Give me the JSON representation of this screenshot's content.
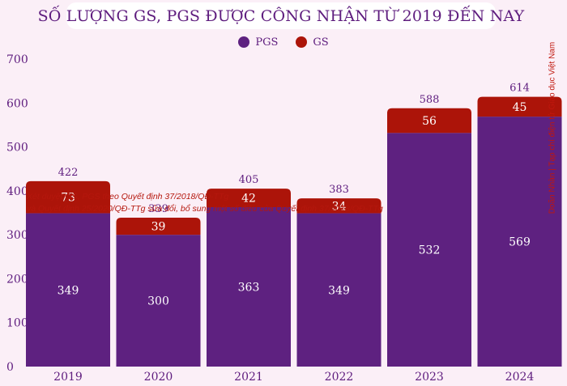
{
  "chart_data": {
    "type": "bar",
    "stacked": true,
    "title": "SỐ LƯỢNG GS, PGS ĐƯỢC CÔNG NHẬN TỪ 2019 ĐẾN NAY",
    "categories": [
      "2019",
      "2020",
      "2021",
      "2022",
      "2023",
      "2024"
    ],
    "series": [
      {
        "name": "PGS",
        "color": "#5e2180",
        "values": [
          349,
          300,
          363,
          349,
          532,
          569
        ]
      },
      {
        "name": "GS",
        "color": "#ac1409",
        "values": [
          73,
          39,
          42,
          34,
          56,
          45
        ]
      }
    ],
    "totals": [
      422,
      339,
      405,
      383,
      588,
      614
    ],
    "ylim": [
      0,
      700
    ],
    "yticks": [
      0,
      100,
      200,
      300,
      400,
      500,
      600,
      700
    ],
    "legend_position": "top-center",
    "grid": false,
    "annotation": [
      "Xét duyệt GS, PGS theo Quyết định 37/2018/QĐ-TTg",
      "và Quyết định 25/2020/QĐ-TTg sửa đổi, bổ sung một số điều của Quyết định 37/2018/QĐ-TTg"
    ],
    "source": "Doãn Nhàn | Tạp chí điện tử Giáo dục Việt Nam"
  }
}
